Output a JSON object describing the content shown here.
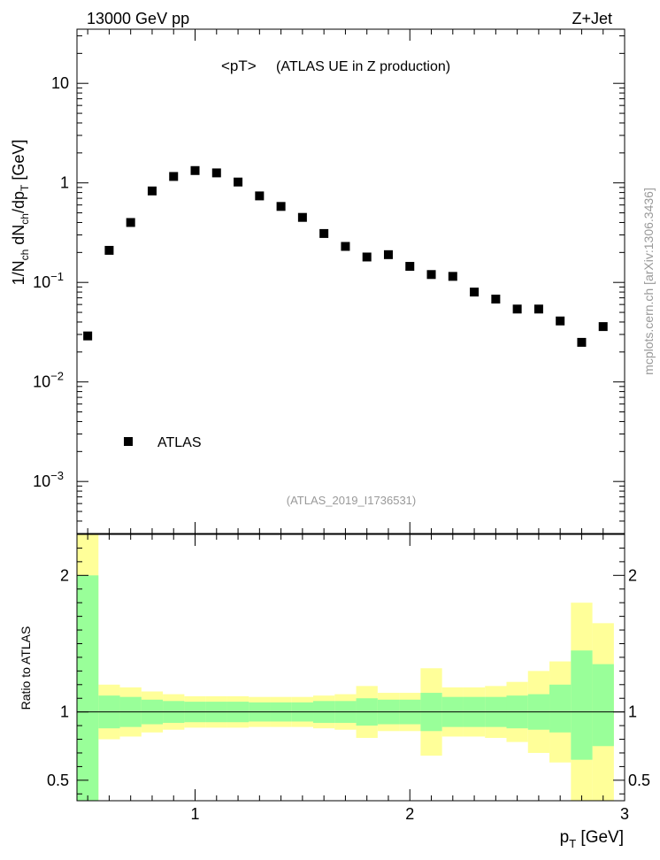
{
  "header": {
    "left": "13000 GeV pp",
    "right": "Z+Jet",
    "title": "<pT>",
    "subtitle": "(ATLAS UE in Z production)",
    "analysis": "(ATLAS_2019_I1736531)",
    "watermark": "mcplots.cern.ch [arXiv:1306.3436]"
  },
  "legend": {
    "label": "ATLAS"
  },
  "colors": {
    "band_inner": "#99ff99",
    "band_outer": "#ffff99",
    "marker": "#000000"
  },
  "chart_data": [
    {
      "type": "scatter",
      "ylabel": "1/N_ch dN_ch/dp_T [GeV]",
      "yscale": "log",
      "xlim": [
        0.45,
        3.0
      ],
      "ylim": [
        0.0003,
        35
      ],
      "yticks": [
        {
          "value": 0.001,
          "base": "10",
          "exp": "−3"
        },
        {
          "value": 0.01,
          "base": "10",
          "exp": "−2"
        },
        {
          "value": 0.1,
          "base": "10",
          "exp": "−1"
        },
        {
          "value": 1,
          "label": "1"
        },
        {
          "value": 10,
          "label": "10"
        }
      ],
      "series": [
        {
          "name": "ATLAS",
          "x": [
            0.5,
            0.6,
            0.7,
            0.8,
            0.9,
            1.0,
            1.1,
            1.2,
            1.3,
            1.4,
            1.5,
            1.6,
            1.7,
            1.8,
            1.9,
            2.0,
            2.1,
            2.2,
            2.3,
            2.4,
            2.5,
            2.6,
            2.7,
            2.8,
            2.9
          ],
          "y": [
            0.029,
            0.21,
            0.4,
            0.83,
            1.16,
            1.33,
            1.26,
            1.02,
            0.74,
            0.58,
            0.45,
            0.31,
            0.23,
            0.18,
            0.19,
            0.145,
            0.12,
            0.115,
            0.08,
            0.068,
            0.054,
            0.054,
            0.041,
            0.025,
            0.036
          ]
        }
      ]
    },
    {
      "type": "area",
      "ylabel": "Ratio to ATLAS",
      "xlabel": "p_T [GeV]",
      "xlim": [
        0.45,
        3.0
      ],
      "ylim": [
        0.35,
        2.3
      ],
      "xticks": [
        1,
        2,
        3
      ],
      "yticks": [
        0.5,
        1,
        2
      ],
      "reference": 1,
      "bins": {
        "edges": [
          0.45,
          0.55,
          0.65,
          0.75,
          0.85,
          0.95,
          1.05,
          1.15,
          1.25,
          1.35,
          1.45,
          1.55,
          1.65,
          1.75,
          1.85,
          1.95,
          2.05,
          2.15,
          2.25,
          2.35,
          2.45,
          2.55,
          2.65,
          2.75,
          2.85,
          2.95
        ],
        "inner_low": [
          0.0,
          0.88,
          0.89,
          0.91,
          0.92,
          0.925,
          0.925,
          0.925,
          0.93,
          0.93,
          0.93,
          0.92,
          0.92,
          0.9,
          0.91,
          0.91,
          0.86,
          0.89,
          0.89,
          0.89,
          0.88,
          0.87,
          0.85,
          0.65,
          0.75
        ],
        "inner_high": [
          2.0,
          1.12,
          1.11,
          1.09,
          1.08,
          1.075,
          1.075,
          1.075,
          1.07,
          1.07,
          1.07,
          1.08,
          1.08,
          1.1,
          1.09,
          1.09,
          1.14,
          1.11,
          1.11,
          1.11,
          1.12,
          1.13,
          1.2,
          1.45,
          1.35
        ],
        "outer_low": [
          0.0,
          0.8,
          0.82,
          0.85,
          0.87,
          0.885,
          0.885,
          0.885,
          0.89,
          0.89,
          0.89,
          0.88,
          0.87,
          0.81,
          0.86,
          0.86,
          0.68,
          0.82,
          0.82,
          0.81,
          0.78,
          0.7,
          0.63,
          0.0,
          0.0
        ],
        "outer_high": [
          2.3,
          1.2,
          1.18,
          1.15,
          1.13,
          1.115,
          1.115,
          1.115,
          1.11,
          1.11,
          1.11,
          1.12,
          1.13,
          1.19,
          1.14,
          1.14,
          1.32,
          1.18,
          1.18,
          1.19,
          1.22,
          1.3,
          1.37,
          1.8,
          1.65
        ]
      }
    }
  ]
}
